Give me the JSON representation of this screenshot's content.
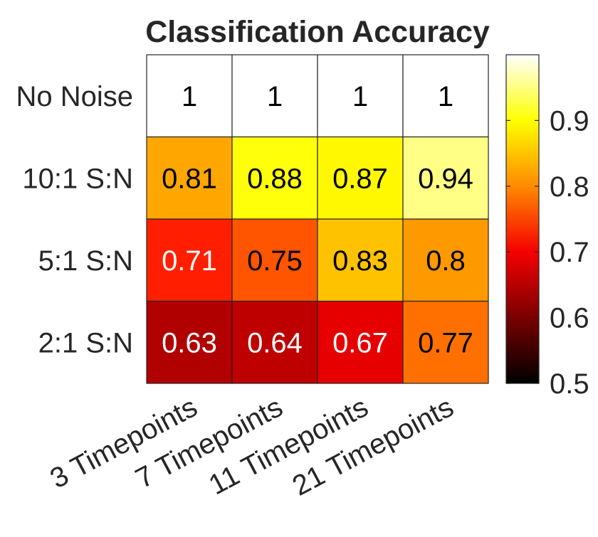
{
  "chart_data": {
    "type": "heatmap",
    "title": "Classification Accuracy",
    "xlabel": "",
    "ylabel": "",
    "x_categories": [
      "3 Timepoints",
      "7 Timepoints",
      "11 Timepoints",
      "21 Timepoints"
    ],
    "y_categories": [
      "No Noise",
      "10:1 S:N",
      "5:1 S:N",
      "2:1 S:N"
    ],
    "values": [
      [
        1,
        1,
        1,
        1
      ],
      [
        0.81,
        0.88,
        0.87,
        0.94
      ],
      [
        0.71,
        0.75,
        0.83,
        0.8
      ],
      [
        0.63,
        0.64,
        0.67,
        0.77
      ]
    ],
    "colormap": "hot",
    "clim": [
      0.5,
      1.0
    ],
    "colorbar_ticks": [
      0.5,
      0.6,
      0.7,
      0.8,
      0.9
    ],
    "grid": true
  }
}
